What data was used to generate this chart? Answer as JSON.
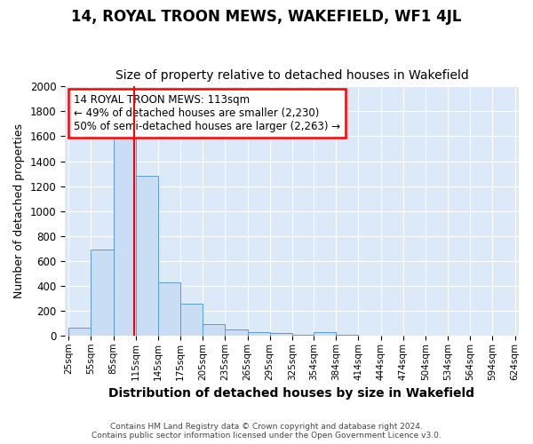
{
  "title": "14, ROYAL TROON MEWS, WAKEFIELD, WF1 4JL",
  "subtitle": "Size of property relative to detached houses in Wakefield",
  "xlabel": "Distribution of detached houses by size in Wakefield",
  "ylabel": "Number of detached properties",
  "footer_line1": "Contains HM Land Registry data © Crown copyright and database right 2024.",
  "footer_line2": "Contains public sector information licensed under the Open Government Licence v3.0.",
  "bar_edges": [
    25,
    55,
    85,
    115,
    145,
    175,
    205,
    235,
    265,
    295,
    325,
    354,
    384,
    414,
    444,
    474,
    504,
    534,
    564,
    594,
    624
  ],
  "bar_heights": [
    65,
    690,
    1640,
    1285,
    430,
    255,
    90,
    50,
    25,
    20,
    5,
    30,
    5,
    0,
    0,
    0,
    0,
    0,
    0,
    0
  ],
  "bar_color": "#c9ddf5",
  "bar_edge_color": "#5b9bd5",
  "red_line_x": 113,
  "annotation_line1": "14 ROYAL TROON MEWS: 113sqm",
  "annotation_line2": "← 49% of detached houses are smaller (2,230)",
  "annotation_line3": "50% of semi-detached houses are larger (2,263) →",
  "annotation_box_color": "white",
  "annotation_box_edge": "red",
  "ylim": [
    0,
    2000
  ],
  "yticks": [
    0,
    200,
    400,
    600,
    800,
    1000,
    1200,
    1400,
    1600,
    1800,
    2000
  ],
  "figure_bg_color": "#ffffff",
  "plot_bg_color": "#dce9f8",
  "grid_color": "#ffffff",
  "title_fontsize": 12,
  "subtitle_fontsize": 10,
  "ylabel_fontsize": 9,
  "xlabel_fontsize": 10,
  "annotation_fontsize": 8.5
}
